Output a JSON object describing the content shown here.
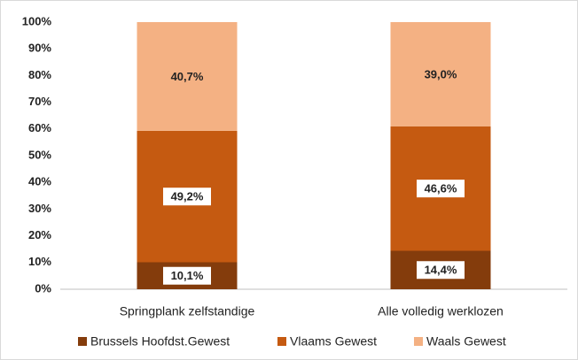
{
  "chart_data": {
    "type": "stacked_bar",
    "categories": [
      "Springplank zelfstandige",
      "Alle volledig werklozen"
    ],
    "series": [
      {
        "name": "Brussels Hoofdst.Gewest",
        "color": "#843c0c",
        "values": [
          10.1,
          14.4
        ],
        "value_labels": [
          "10,1%",
          "14,4%"
        ]
      },
      {
        "name": "Vlaams Gewest",
        "color": "#c55a11",
        "values": [
          49.2,
          46.6
        ],
        "value_labels": [
          "49,2%",
          "46,6%"
        ]
      },
      {
        "name": "Waals Gewest",
        "color": "#f4b183",
        "values": [
          40.7,
          39.0
        ],
        "value_labels": [
          "40,7%",
          "39,0%"
        ]
      }
    ],
    "ylim": [
      0,
      100
    ],
    "yticks": [
      {
        "value": 0,
        "label": "0%"
      },
      {
        "value": 10,
        "label": "10%"
      },
      {
        "value": 20,
        "label": "20%"
      },
      {
        "value": 30,
        "label": "30%"
      },
      {
        "value": 40,
        "label": "40%"
      },
      {
        "value": 50,
        "label": "50%"
      },
      {
        "value": 60,
        "label": "60%"
      },
      {
        "value": 70,
        "label": "70%"
      },
      {
        "value": 80,
        "label": "80%"
      },
      {
        "value": 90,
        "label": "90%"
      },
      {
        "value": 100,
        "label": "100%"
      }
    ],
    "legend": "bottom"
  }
}
